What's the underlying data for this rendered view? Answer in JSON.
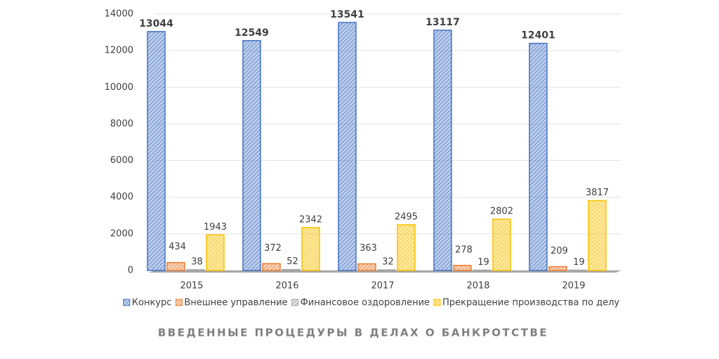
{
  "chart_data": {
    "type": "bar",
    "title": "ВВЕДЕННЫЕ ПРОЦЕДУРЫ В ДЕЛАХ О БАНКРОТСТВЕ",
    "categories": [
      "2015",
      "2016",
      "2017",
      "2018",
      "2019"
    ],
    "series": [
      {
        "name": "Конкурс",
        "color": "#4472c4",
        "values": [
          13044,
          12549,
          13541,
          13117,
          12401
        ]
      },
      {
        "name": "Внешнее управление",
        "color": "#ed7d31",
        "values": [
          434,
          372,
          363,
          278,
          209
        ]
      },
      {
        "name": "Финансовое оздоровление",
        "color": "#a5a5a5",
        "values": [
          38,
          52,
          32,
          19,
          19
        ]
      },
      {
        "name": "Прекращение производства по делу",
        "color": "#ffc000",
        "values": [
          1943,
          2342,
          2495,
          2802,
          3817
        ]
      }
    ],
    "ylim": [
      0,
      14000
    ],
    "yticks": [
      0,
      2000,
      4000,
      6000,
      8000,
      10000,
      12000,
      14000
    ],
    "grid": true
  }
}
